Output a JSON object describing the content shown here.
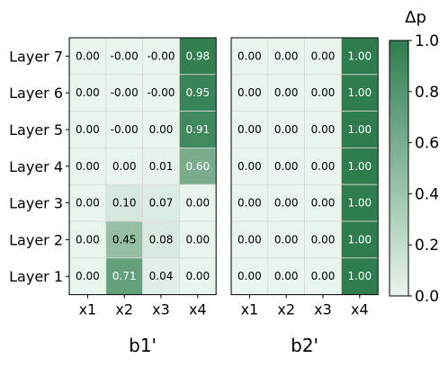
{
  "chart_data": {
    "type": "heatmap",
    "colorbar": {
      "title": "Δp",
      "min": 0.0,
      "max": 1.0,
      "tick_labels": [
        "0.0",
        "0.2",
        "0.4",
        "0.6",
        "0.8",
        "1.0"
      ],
      "color_low": "#e9f4ec",
      "color_high": "#2f7d4f"
    },
    "rows": [
      "Layer 7",
      "Layer 6",
      "Layer 5",
      "Layer 4",
      "Layer 3",
      "Layer 2",
      "Layer 1"
    ],
    "columns": [
      "x1",
      "x2",
      "x3",
      "x4"
    ],
    "panels": [
      {
        "title": "b1'",
        "labels": [
          [
            "0.00",
            "-0.00",
            "-0.00",
            "0.98"
          ],
          [
            "0.00",
            "-0.00",
            "-0.00",
            "0.95"
          ],
          [
            "0.00",
            "-0.00",
            "0.00",
            "0.91"
          ],
          [
            "0.00",
            "0.00",
            "0.01",
            "0.60"
          ],
          [
            "0.00",
            "0.10",
            "0.07",
            "0.00"
          ],
          [
            "0.00",
            "0.45",
            "0.08",
            "0.00"
          ],
          [
            "0.00",
            "0.71",
            "0.04",
            "0.00"
          ]
        ],
        "values": [
          [
            0.0,
            0.0,
            0.0,
            0.98
          ],
          [
            0.0,
            0.0,
            0.0,
            0.95
          ],
          [
            0.0,
            0.0,
            0.0,
            0.91
          ],
          [
            0.0,
            0.0,
            0.01,
            0.6
          ],
          [
            0.0,
            0.1,
            0.07,
            0.0
          ],
          [
            0.0,
            0.45,
            0.08,
            0.0
          ],
          [
            0.0,
            0.71,
            0.04,
            0.0
          ]
        ]
      },
      {
        "title": "b2'",
        "labels": [
          [
            "0.00",
            "0.00",
            "0.00",
            "1.00"
          ],
          [
            "0.00",
            "0.00",
            "0.00",
            "1.00"
          ],
          [
            "0.00",
            "0.00",
            "0.00",
            "1.00"
          ],
          [
            "0.00",
            "0.00",
            "0.00",
            "1.00"
          ],
          [
            "0.00",
            "0.00",
            "0.00",
            "1.00"
          ],
          [
            "0.00",
            "0.00",
            "0.00",
            "1.00"
          ],
          [
            "0.00",
            "0.00",
            "0.00",
            "1.00"
          ]
        ],
        "values": [
          [
            0.0,
            0.0,
            0.0,
            1.0
          ],
          [
            0.0,
            0.0,
            0.0,
            1.0
          ],
          [
            0.0,
            0.0,
            0.0,
            1.0
          ],
          [
            0.0,
            0.0,
            0.0,
            1.0
          ],
          [
            0.0,
            0.0,
            0.0,
            1.0
          ],
          [
            0.0,
            0.0,
            0.0,
            1.0
          ],
          [
            0.0,
            0.0,
            0.0,
            1.0
          ]
        ]
      }
    ]
  }
}
